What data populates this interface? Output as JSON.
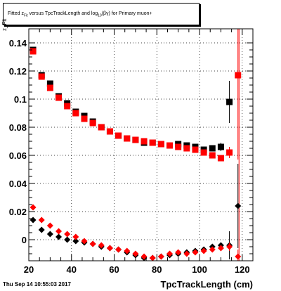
{
  "title": {
    "prefix": "Fitted  z",
    "sub_fit": "Fit",
    "mid": "  versus TpcTrackLength and log",
    "sub_10": "10",
    "suffix": "(βγ) for Primary muon+"
  },
  "footer": {
    "date": "Thu Sep 14 10:55:03 2017",
    "xlabel": "TpcTrackLength (cm)",
    "ylabel": "z_Fit"
  },
  "colors": {
    "black": "#000000",
    "red": "#ff0000",
    "frame": "#000000"
  },
  "chart_data": {
    "type": "scatter",
    "xlim": [
      20,
      125
    ],
    "ylim": [
      -0.015,
      0.15
    ],
    "xticks": [
      20,
      40,
      60,
      80,
      100,
      120
    ],
    "yticks": [
      0,
      0.02,
      0.04,
      0.06,
      0.08,
      0.1,
      0.12,
      0.14
    ],
    "ytick_labels": [
      "0",
      "0.02",
      "0.04",
      "0.06",
      "0.08",
      "0.1",
      "0.12",
      "0.14"
    ],
    "grid": true,
    "vline_x": 118.5,
    "series": [
      {
        "marker": "square",
        "color": "#000000",
        "x": [
          22,
          26,
          30,
          34,
          38,
          42,
          46,
          50,
          54,
          58,
          62,
          66,
          70,
          74,
          78,
          82,
          86,
          90,
          94,
          98,
          102,
          106,
          110,
          114
        ],
        "y": [
          0.135,
          0.117,
          0.111,
          0.102,
          0.097,
          0.091,
          0.088,
          0.084,
          0.08,
          0.077,
          0.074,
          0.072,
          0.071,
          0.069,
          0.069,
          0.068,
          0.067,
          0.068,
          0.067,
          0.066,
          0.064,
          0.065,
          0.066,
          0.098
        ],
        "err": [
          0.002,
          0.0015,
          0.0015,
          0.0015,
          0.0015,
          0.0015,
          0.0015,
          0.0015,
          0.0015,
          0.0015,
          0.0015,
          0.0015,
          0.0015,
          0.0015,
          0.0015,
          0.0015,
          0.0015,
          0.0015,
          0.0015,
          0.0015,
          0.0015,
          0.002,
          0.003,
          0.015
        ]
      },
      {
        "marker": "square",
        "color": "#ff0000",
        "x": [
          22,
          26,
          30,
          34,
          38,
          42,
          46,
          50,
          54,
          58,
          62,
          66,
          70,
          74,
          78,
          82,
          86,
          90,
          94,
          98,
          102,
          106,
          110,
          114,
          118
        ],
        "y": [
          0.134,
          0.116,
          0.108,
          0.101,
          0.095,
          0.09,
          0.086,
          0.083,
          0.08,
          0.077,
          0.074,
          0.072,
          0.071,
          0.07,
          0.069,
          0.068,
          0.067,
          0.066,
          0.065,
          0.064,
          0.062,
          0.06,
          0.058,
          0.062,
          0.117
        ],
        "err": [
          0.002,
          0.0015,
          0.0015,
          0.0015,
          0.0015,
          0.0015,
          0.0015,
          0.0015,
          0.0015,
          0.0015,
          0.0015,
          0.0015,
          0.0015,
          0.0015,
          0.0015,
          0.0015,
          0.0015,
          0.0015,
          0.0015,
          0.0015,
          0.0015,
          0.002,
          0.002,
          0.004,
          0.06
        ]
      },
      {
        "marker": "diamond",
        "color": "#000000",
        "x": [
          22,
          26,
          30,
          34,
          38,
          42,
          46,
          50,
          54,
          58,
          62,
          66,
          70,
          74,
          78,
          82,
          86,
          90,
          94,
          98,
          102,
          106,
          110,
          114,
          118
        ],
        "y": [
          0.014,
          0.007,
          0.004,
          0.002,
          0.0,
          -0.001,
          -0.002,
          -0.003,
          -0.005,
          -0.006,
          -0.007,
          -0.009,
          -0.011,
          -0.013,
          -0.013,
          -0.012,
          -0.011,
          -0.01,
          -0.009,
          -0.008,
          -0.007,
          -0.005,
          -0.004,
          -0.004,
          0.024
        ],
        "err": [
          0.001,
          0.001,
          0.001,
          0.001,
          0.001,
          0.001,
          0.001,
          0.001,
          0.001,
          0.001,
          0.001,
          0.001,
          0.001,
          0.001,
          0.001,
          0.001,
          0.001,
          0.001,
          0.001,
          0.001,
          0.001,
          0.001,
          0.002,
          0.01,
          0.03
        ]
      },
      {
        "marker": "diamond",
        "color": "#ff0000",
        "x": [
          22,
          26,
          30,
          34,
          38,
          42,
          46,
          50,
          54,
          58,
          62,
          66,
          70,
          74,
          78,
          82,
          86,
          90,
          94,
          98,
          102,
          106,
          110,
          114,
          118
        ],
        "y": [
          0.023,
          0.014,
          0.01,
          0.006,
          0.004,
          0.002,
          -0.001,
          -0.003,
          -0.004,
          -0.006,
          -0.007,
          -0.008,
          -0.01,
          -0.012,
          -0.013,
          -0.012,
          -0.01,
          -0.009,
          -0.01,
          -0.009,
          -0.008,
          -0.007,
          -0.006,
          -0.005,
          -0.012
        ],
        "err": [
          0.001,
          0.001,
          0.001,
          0.001,
          0.001,
          0.001,
          0.001,
          0.001,
          0.001,
          0.001,
          0.001,
          0.001,
          0.001,
          0.001,
          0.001,
          0.001,
          0.001,
          0.001,
          0.001,
          0.001,
          0.001,
          0.001,
          0.002,
          0.003,
          0.005
        ]
      }
    ]
  }
}
